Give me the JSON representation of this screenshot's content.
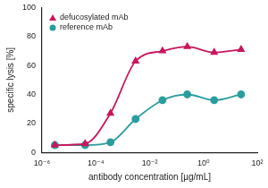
{
  "chart_data": {
    "type": "scatter",
    "x_label": "antibody concentration [µg/mL]",
    "y_label": "specific lysis [%]",
    "x": [
      3e-06,
      4e-05,
      0.00035,
      0.003,
      0.03,
      0.25,
      2.5,
      25
    ],
    "series": [
      {
        "name": "defucosylated mAb",
        "color": "#c8175d",
        "marker": "triangle",
        "line_style": "solid",
        "values": [
          5,
          6,
          27,
          63,
          70,
          73,
          69,
          71
        ]
      },
      {
        "name": "reference mAb",
        "color": "#2a9d9e",
        "marker": "circle",
        "line_style": "solid",
        "values": [
          5,
          5,
          7,
          23,
          36,
          40,
          36,
          40
        ]
      }
    ],
    "log": "x",
    "xlim": [
      1e-06,
      100
    ],
    "xticks": [
      {
        "value": 1e-06,
        "label": "10⁻⁶"
      },
      {
        "value": 0.0001,
        "label": "10⁻⁴"
      },
      {
        "value": 0.01,
        "label": "10⁻²"
      },
      {
        "value": 1,
        "label": "10⁰"
      },
      {
        "value": 100,
        "label": "10²"
      }
    ],
    "ylim": [
      0,
      100
    ],
    "yticks": [
      0,
      20,
      40,
      60,
      80,
      100
    ],
    "grid": false,
    "legend": "upper left"
  }
}
